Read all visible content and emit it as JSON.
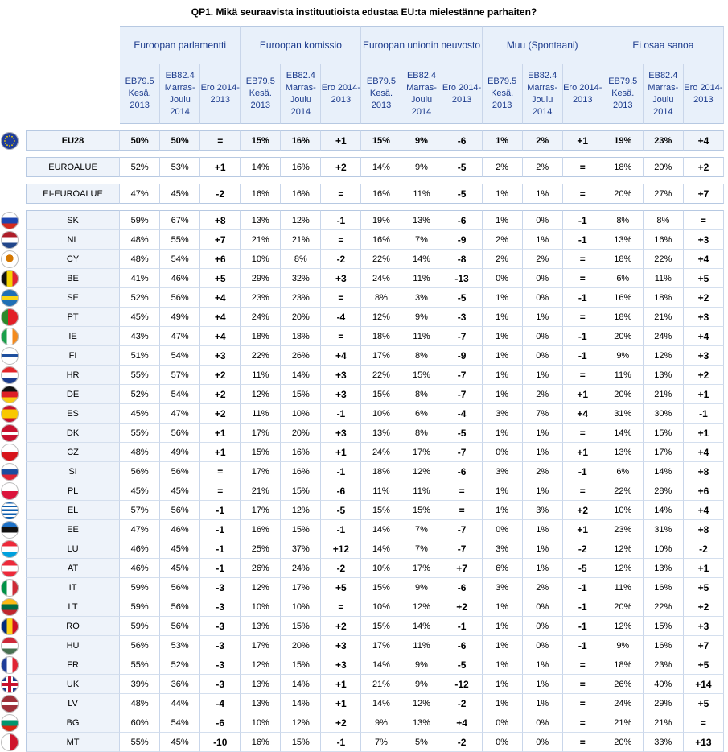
{
  "title": "QP1. Mikä seuraavista instituutioista edustaa EU:ta mielestänne parhaiten?",
  "groups": [
    "Euroopan parlamentti",
    "Euroopan komissio",
    "Euroopan unionin neuvosto",
    "Muu (Spontaani)",
    "Ei osaa sanoa"
  ],
  "subheaders": [
    "EB79.5 Kesä. 2013",
    "EB82.4 Marras-Joulu 2014",
    "Ero 2014-2013"
  ],
  "eu28": {
    "label": "EU28",
    "values": [
      "50%",
      "50%",
      "=",
      "15%",
      "16%",
      "+1",
      "15%",
      "9%",
      "-6",
      "1%",
      "2%",
      "+1",
      "19%",
      "23%",
      "+4"
    ]
  },
  "aggregates": [
    {
      "label": "EUROALUE",
      "values": [
        "52%",
        "53%",
        "+1",
        "14%",
        "16%",
        "+2",
        "14%",
        "9%",
        "-5",
        "2%",
        "2%",
        "=",
        "18%",
        "20%",
        "+2"
      ]
    },
    {
      "label": "EI-EUROALUE",
      "values": [
        "47%",
        "45%",
        "-2",
        "16%",
        "16%",
        "=",
        "16%",
        "11%",
        "-5",
        "1%",
        "1%",
        "=",
        "20%",
        "27%",
        "+7"
      ]
    }
  ],
  "countries": [
    {
      "label": "SK",
      "flag": "sk",
      "values": [
        "59%",
        "67%",
        "+8",
        "13%",
        "12%",
        "-1",
        "19%",
        "13%",
        "-6",
        "1%",
        "0%",
        "-1",
        "8%",
        "8%",
        "="
      ]
    },
    {
      "label": "NL",
      "flag": "nl",
      "values": [
        "48%",
        "55%",
        "+7",
        "21%",
        "21%",
        "=",
        "16%",
        "7%",
        "-9",
        "2%",
        "1%",
        "-1",
        "13%",
        "16%",
        "+3"
      ]
    },
    {
      "label": "CY",
      "flag": "cy",
      "values": [
        "48%",
        "54%",
        "+6",
        "10%",
        "8%",
        "-2",
        "22%",
        "14%",
        "-8",
        "2%",
        "2%",
        "=",
        "18%",
        "22%",
        "+4"
      ]
    },
    {
      "label": "BE",
      "flag": "be",
      "values": [
        "41%",
        "46%",
        "+5",
        "29%",
        "32%",
        "+3",
        "24%",
        "11%",
        "-13",
        "0%",
        "0%",
        "=",
        "6%",
        "11%",
        "+5"
      ]
    },
    {
      "label": "SE",
      "flag": "se",
      "values": [
        "52%",
        "56%",
        "+4",
        "23%",
        "23%",
        "=",
        "8%",
        "3%",
        "-5",
        "1%",
        "0%",
        "-1",
        "16%",
        "18%",
        "+2"
      ]
    },
    {
      "label": "PT",
      "flag": "pt",
      "values": [
        "45%",
        "49%",
        "+4",
        "24%",
        "20%",
        "-4",
        "12%",
        "9%",
        "-3",
        "1%",
        "1%",
        "=",
        "18%",
        "21%",
        "+3"
      ]
    },
    {
      "label": "IE",
      "flag": "ie",
      "values": [
        "43%",
        "47%",
        "+4",
        "18%",
        "18%",
        "=",
        "18%",
        "11%",
        "-7",
        "1%",
        "0%",
        "-1",
        "20%",
        "24%",
        "+4"
      ]
    },
    {
      "label": "FI",
      "flag": "fi",
      "values": [
        "51%",
        "54%",
        "+3",
        "22%",
        "26%",
        "+4",
        "17%",
        "8%",
        "-9",
        "1%",
        "0%",
        "-1",
        "9%",
        "12%",
        "+3"
      ]
    },
    {
      "label": "HR",
      "flag": "hr",
      "values": [
        "55%",
        "57%",
        "+2",
        "11%",
        "14%",
        "+3",
        "22%",
        "15%",
        "-7",
        "1%",
        "1%",
        "=",
        "11%",
        "13%",
        "+2"
      ]
    },
    {
      "label": "DE",
      "flag": "de",
      "values": [
        "52%",
        "54%",
        "+2",
        "12%",
        "15%",
        "+3",
        "15%",
        "8%",
        "-7",
        "1%",
        "2%",
        "+1",
        "20%",
        "21%",
        "+1"
      ]
    },
    {
      "label": "ES",
      "flag": "es",
      "values": [
        "45%",
        "47%",
        "+2",
        "11%",
        "10%",
        "-1",
        "10%",
        "6%",
        "-4",
        "3%",
        "7%",
        "+4",
        "31%",
        "30%",
        "-1"
      ]
    },
    {
      "label": "DK",
      "flag": "dk",
      "values": [
        "55%",
        "56%",
        "+1",
        "17%",
        "20%",
        "+3",
        "13%",
        "8%",
        "-5",
        "1%",
        "1%",
        "=",
        "14%",
        "15%",
        "+1"
      ]
    },
    {
      "label": "CZ",
      "flag": "cz",
      "values": [
        "48%",
        "49%",
        "+1",
        "15%",
        "16%",
        "+1",
        "24%",
        "17%",
        "-7",
        "0%",
        "1%",
        "+1",
        "13%",
        "17%",
        "+4"
      ]
    },
    {
      "label": "SI",
      "flag": "si",
      "values": [
        "56%",
        "56%",
        "=",
        "17%",
        "16%",
        "-1",
        "18%",
        "12%",
        "-6",
        "3%",
        "2%",
        "-1",
        "6%",
        "14%",
        "+8"
      ]
    },
    {
      "label": "PL",
      "flag": "pl",
      "values": [
        "45%",
        "45%",
        "=",
        "21%",
        "15%",
        "-6",
        "11%",
        "11%",
        "=",
        "1%",
        "1%",
        "=",
        "22%",
        "28%",
        "+6"
      ]
    },
    {
      "label": "EL",
      "flag": "el",
      "values": [
        "57%",
        "56%",
        "-1",
        "17%",
        "12%",
        "-5",
        "15%",
        "15%",
        "=",
        "1%",
        "3%",
        "+2",
        "10%",
        "14%",
        "+4"
      ]
    },
    {
      "label": "EE",
      "flag": "ee",
      "values": [
        "47%",
        "46%",
        "-1",
        "16%",
        "15%",
        "-1",
        "14%",
        "7%",
        "-7",
        "0%",
        "1%",
        "+1",
        "23%",
        "31%",
        "+8"
      ]
    },
    {
      "label": "LU",
      "flag": "lu",
      "values": [
        "46%",
        "45%",
        "-1",
        "25%",
        "37%",
        "+12",
        "14%",
        "7%",
        "-7",
        "3%",
        "1%",
        "-2",
        "12%",
        "10%",
        "-2"
      ]
    },
    {
      "label": "AT",
      "flag": "at",
      "values": [
        "46%",
        "45%",
        "-1",
        "26%",
        "24%",
        "-2",
        "10%",
        "17%",
        "+7",
        "6%",
        "1%",
        "-5",
        "12%",
        "13%",
        "+1"
      ]
    },
    {
      "label": "IT",
      "flag": "it",
      "values": [
        "59%",
        "56%",
        "-3",
        "12%",
        "17%",
        "+5",
        "15%",
        "9%",
        "-6",
        "3%",
        "2%",
        "-1",
        "11%",
        "16%",
        "+5"
      ]
    },
    {
      "label": "LT",
      "flag": "lt",
      "values": [
        "59%",
        "56%",
        "-3",
        "10%",
        "10%",
        "=",
        "10%",
        "12%",
        "+2",
        "1%",
        "0%",
        "-1",
        "20%",
        "22%",
        "+2"
      ]
    },
    {
      "label": "RO",
      "flag": "ro",
      "values": [
        "59%",
        "56%",
        "-3",
        "13%",
        "15%",
        "+2",
        "15%",
        "14%",
        "-1",
        "1%",
        "0%",
        "-1",
        "12%",
        "15%",
        "+3"
      ]
    },
    {
      "label": "HU",
      "flag": "hu",
      "values": [
        "56%",
        "53%",
        "-3",
        "17%",
        "20%",
        "+3",
        "17%",
        "11%",
        "-6",
        "1%",
        "0%",
        "-1",
        "9%",
        "16%",
        "+7"
      ]
    },
    {
      "label": "FR",
      "flag": "fr",
      "values": [
        "55%",
        "52%",
        "-3",
        "12%",
        "15%",
        "+3",
        "14%",
        "9%",
        "-5",
        "1%",
        "1%",
        "=",
        "18%",
        "23%",
        "+5"
      ]
    },
    {
      "label": "UK",
      "flag": "uk",
      "values": [
        "39%",
        "36%",
        "-3",
        "13%",
        "14%",
        "+1",
        "21%",
        "9%",
        "-12",
        "1%",
        "1%",
        "=",
        "26%",
        "40%",
        "+14"
      ]
    },
    {
      "label": "LV",
      "flag": "lv",
      "values": [
        "48%",
        "44%",
        "-4",
        "13%",
        "14%",
        "+1",
        "14%",
        "12%",
        "-2",
        "1%",
        "1%",
        "=",
        "24%",
        "29%",
        "+5"
      ]
    },
    {
      "label": "BG",
      "flag": "bg",
      "values": [
        "60%",
        "54%",
        "-6",
        "10%",
        "12%",
        "+2",
        "9%",
        "13%",
        "+4",
        "0%",
        "0%",
        "=",
        "21%",
        "21%",
        "="
      ]
    },
    {
      "label": "MT",
      "flag": "mt",
      "values": [
        "55%",
        "45%",
        "-10",
        "16%",
        "15%",
        "-1",
        "7%",
        "5%",
        "-2",
        "0%",
        "0%",
        "=",
        "20%",
        "33%",
        "+13"
      ]
    }
  ]
}
